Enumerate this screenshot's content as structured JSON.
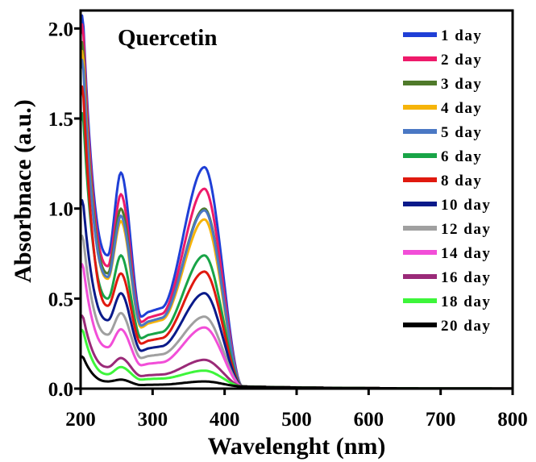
{
  "chart_data": {
    "type": "line",
    "annotation": "Quercetin",
    "xlabel": "Wavelenght (nm)",
    "ylabel": "Absorbnace (a.u.)",
    "xlim": [
      200,
      800
    ],
    "ylim": [
      0,
      2.1
    ],
    "xticks": [
      200,
      300,
      400,
      500,
      600,
      700,
      800
    ],
    "yticks": [
      0.0,
      0.5,
      1.0,
      1.5,
      2.0
    ],
    "xtick_labels": [
      "200",
      "300",
      "400",
      "500",
      "600",
      "700",
      "800"
    ],
    "ytick_labels": [
      "0.0",
      "0.5",
      "1.0",
      "1.5",
      "2.0"
    ],
    "grid": false,
    "legend_position": "top-right",
    "series": [
      {
        "name": "1 day",
        "color": "#1f3fd6",
        "peak200": 2.1,
        "peak256": 1.2,
        "valley240": 0.74,
        "valley290": 0.4,
        "peak372": 1.23
      },
      {
        "name": "2 day",
        "color": "#ee1a6a",
        "peak200": 2.05,
        "peak256": 1.08,
        "valley240": 0.68,
        "valley290": 0.37,
        "peak372": 1.11
      },
      {
        "name": "3 day",
        "color": "#4f7a2a",
        "peak200": 1.95,
        "peak256": 1.0,
        "valley240": 0.64,
        "valley290": 0.35,
        "peak372": 1.0
      },
      {
        "name": "4 day",
        "color": "#f6b40a",
        "peak200": 1.9,
        "peak256": 0.93,
        "valley240": 0.61,
        "valley290": 0.34,
        "peak372": 0.94
      },
      {
        "name": "5 day",
        "color": "#4a78c4",
        "peak200": 1.85,
        "peak256": 0.96,
        "valley240": 0.62,
        "valley290": 0.35,
        "peak372": 0.99
      },
      {
        "name": "6 day",
        "color": "#18a447",
        "peak200": 1.55,
        "peak256": 0.74,
        "valley240": 0.5,
        "valley290": 0.28,
        "peak372": 0.74
      },
      {
        "name": "8 day",
        "color": "#e0190f",
        "peak200": 1.7,
        "peak256": 0.64,
        "valley240": 0.46,
        "valley290": 0.25,
        "peak372": 0.65
      },
      {
        "name": "10 day",
        "color": "#0a1a8a",
        "peak200": 1.06,
        "peak256": 0.53,
        "valley240": 0.38,
        "valley290": 0.21,
        "peak372": 0.53
      },
      {
        "name": "12 day",
        "color": "#a0a0a0",
        "peak200": 0.86,
        "peak256": 0.42,
        "valley240": 0.3,
        "valley290": 0.17,
        "peak372": 0.4
      },
      {
        "name": "14 day",
        "color": "#f24ed8",
        "peak200": 0.7,
        "peak256": 0.33,
        "valley240": 0.23,
        "valley290": 0.13,
        "peak372": 0.34
      },
      {
        "name": "16 day",
        "color": "#9a2a78",
        "peak200": 0.41,
        "peak256": 0.17,
        "valley240": 0.12,
        "valley290": 0.07,
        "peak372": 0.16
      },
      {
        "name": "18 day",
        "color": "#3df53a",
        "peak200": 0.33,
        "peak256": 0.12,
        "valley240": 0.08,
        "valley290": 0.05,
        "peak372": 0.1
      },
      {
        "name": "20 day",
        "color": "#000000",
        "peak200": 0.18,
        "peak256": 0.05,
        "valley240": 0.04,
        "valley290": 0.02,
        "peak372": 0.04
      }
    ]
  }
}
